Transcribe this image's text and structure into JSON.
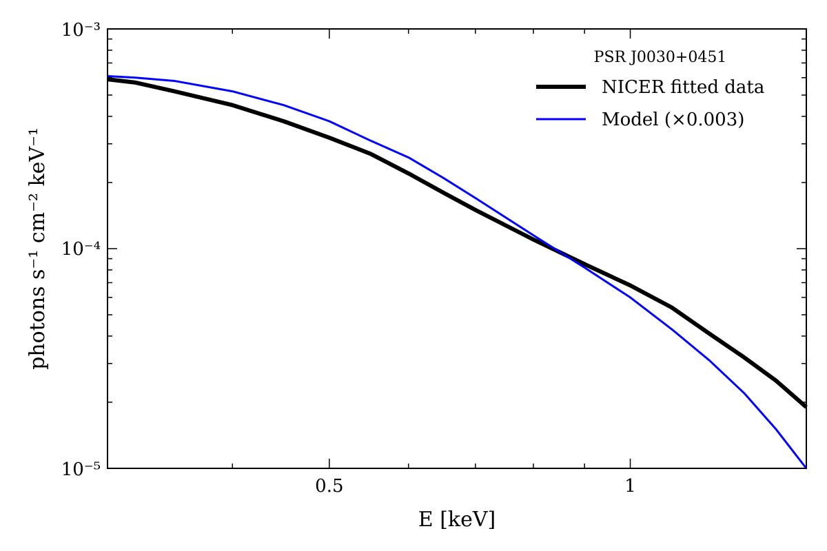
{
  "chart_data": {
    "type": "line",
    "xlabel": "E [keV]",
    "ylabel": "photons s⁻¹ cm⁻² keV⁻¹",
    "x_scale": "log",
    "y_scale": "log",
    "xlim": [
      0.3,
      1.5
    ],
    "ylim": [
      1e-05,
      0.001
    ],
    "x_ticks": [
      {
        "value": 0.5,
        "label": "0.5"
      },
      {
        "value": 1,
        "label": "1"
      }
    ],
    "x_minor_ticks": [
      0.4,
      0.6,
      0.7,
      0.8,
      0.9
    ],
    "y_ticks": [
      {
        "value": 1e-05,
        "label": "10⁻⁵"
      },
      {
        "value": 0.0001,
        "label": "10⁻⁴"
      },
      {
        "value": 0.001,
        "label": "10⁻³"
      }
    ],
    "grid": false,
    "legend": {
      "title": "PSR J0030+0451",
      "position": "top-right"
    },
    "series": [
      {
        "name": "NICER fitted data",
        "color": "#000000",
        "x": [
          0.3,
          0.32,
          0.35,
          0.4,
          0.45,
          0.5,
          0.55,
          0.6,
          0.65,
          0.7,
          0.8,
          0.9,
          1.0,
          1.1,
          1.2,
          1.3,
          1.4,
          1.5
        ],
        "y": [
          0.00059,
          0.00057,
          0.00052,
          0.00045,
          0.00038,
          0.00032,
          0.00027,
          0.00022,
          0.00018,
          0.00015,
          0.00011,
          8.5e-05,
          6.8e-05,
          5.4e-05,
          4.1e-05,
          3.2e-05,
          2.5e-05,
          1.9e-05
        ]
      },
      {
        "name": "Model (×0.003)",
        "color": "#0000ff",
        "x": [
          0.3,
          0.32,
          0.35,
          0.4,
          0.45,
          0.5,
          0.55,
          0.6,
          0.65,
          0.7,
          0.8,
          0.9,
          1.0,
          1.1,
          1.2,
          1.3,
          1.4,
          1.5
        ],
        "y": [
          0.00061,
          0.0006,
          0.00058,
          0.00052,
          0.00045,
          0.00038,
          0.00031,
          0.00026,
          0.00021,
          0.00017,
          0.000115,
          8.2e-05,
          6e-05,
          4.3e-05,
          3.1e-05,
          2.2e-05,
          1.5e-05,
          1e-05
        ]
      }
    ]
  }
}
